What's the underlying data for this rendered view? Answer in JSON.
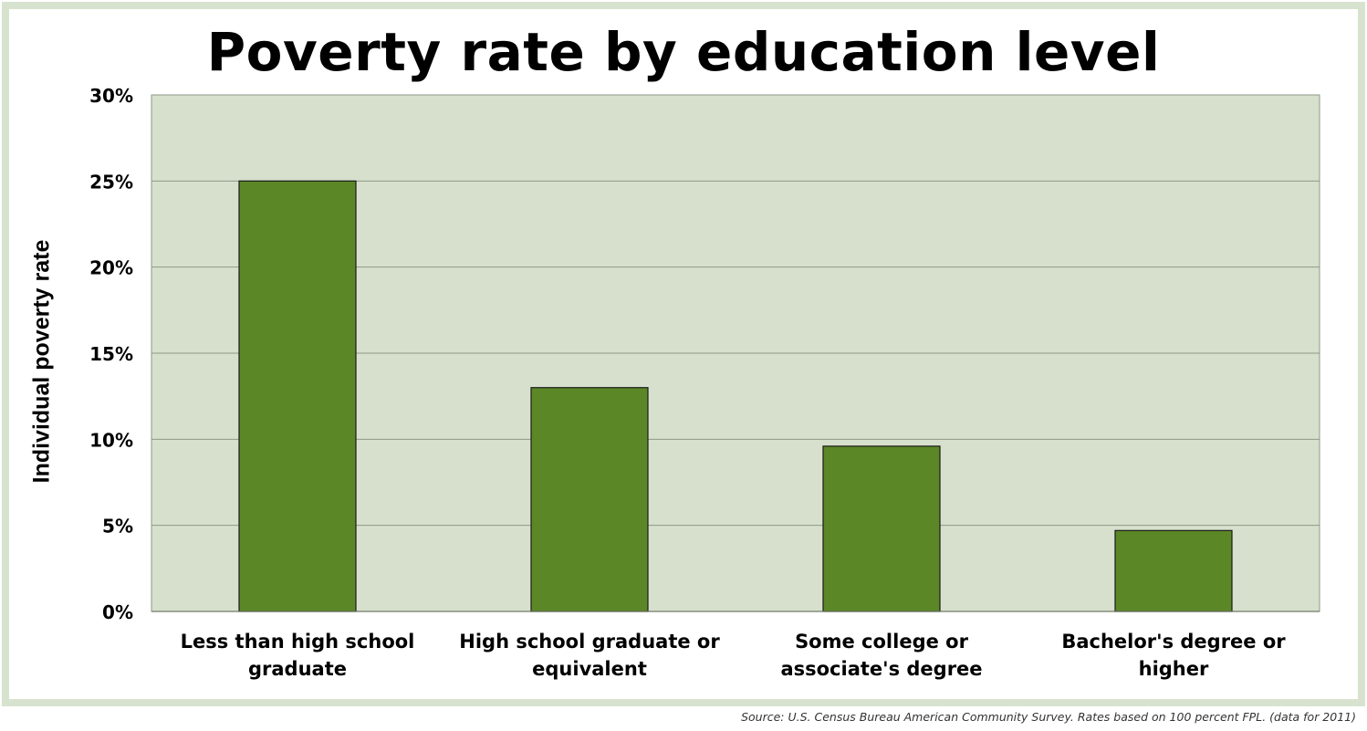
{
  "chart_data": {
    "type": "bar",
    "title": "Poverty rate by education level",
    "ylabel": "Individual poverty rate",
    "xlabel": "",
    "categories": [
      [
        "Less than high school",
        "graduate"
      ],
      [
        "High school graduate or",
        "equivalent"
      ],
      [
        "Some college or",
        "associate's degree"
      ],
      [
        "Bachelor's degree or",
        "higher"
      ]
    ],
    "values": [
      25.0,
      13.0,
      9.6,
      4.7
    ],
    "value_unit": "%",
    "ylim": [
      0,
      30
    ],
    "yticks": [
      0,
      5,
      10,
      15,
      20,
      25,
      30
    ],
    "ytick_labels": [
      "0%",
      "5%",
      "10%",
      "15%",
      "20%",
      "25%",
      "30%"
    ],
    "grid": true,
    "legend": "none",
    "colors": {
      "bar": "#5b8726",
      "bar_edge": "#1a1a1a",
      "plot_background": "#d6e0cc",
      "gridline": "#8e9a88",
      "frame_border": "#d8e3cf"
    }
  },
  "source": "Source: U.S. Census Bureau American Community Survey. Rates based on 100 percent FPL. (data for 2011)"
}
